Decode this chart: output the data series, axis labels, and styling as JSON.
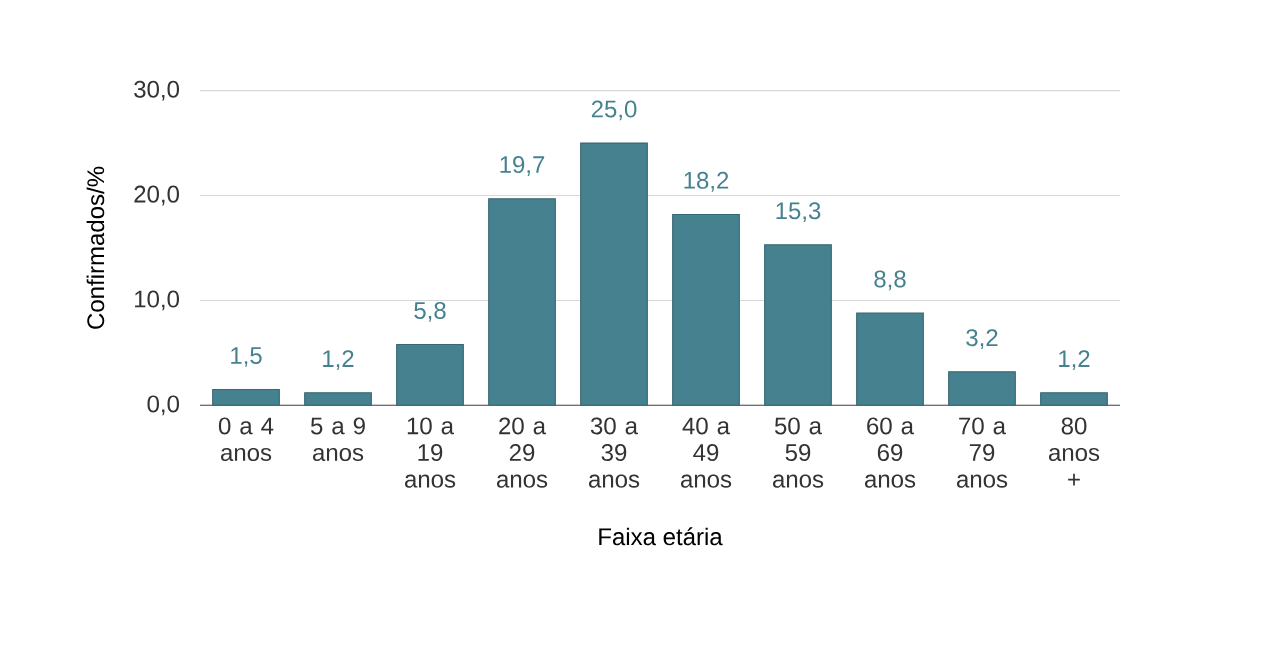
{
  "chart_data": {
    "type": "bar",
    "xlabel": "Faixa etária",
    "ylabel": "Confirmados/%",
    "categories": [
      "0 a 4 anos",
      "5 a 9 anos",
      "10 a 19 anos",
      "20 a 29 anos",
      "30 a 39 anos",
      "40 a 49 anos",
      "50 a 59 anos",
      "60 a 69 anos",
      "70 a 79 anos",
      "80 anos +"
    ],
    "values": [
      1.5,
      1.2,
      5.8,
      19.7,
      25.0,
      18.2,
      15.3,
      8.8,
      3.2,
      1.2
    ],
    "value_labels": [
      "1,5",
      "1,2",
      "5,8",
      "19,7",
      "25,0",
      "18,2",
      "15,3",
      "8,8",
      "3,2",
      "1,2"
    ],
    "color": "#45818e",
    "ylim": [
      0,
      30
    ],
    "yticks": [
      {
        "value": 0,
        "label": "0,0"
      },
      {
        "value": 10,
        "label": "10,0"
      },
      {
        "value": 20,
        "label": "20,0"
      },
      {
        "value": 30,
        "label": "30,0"
      }
    ],
    "grid": "y"
  }
}
